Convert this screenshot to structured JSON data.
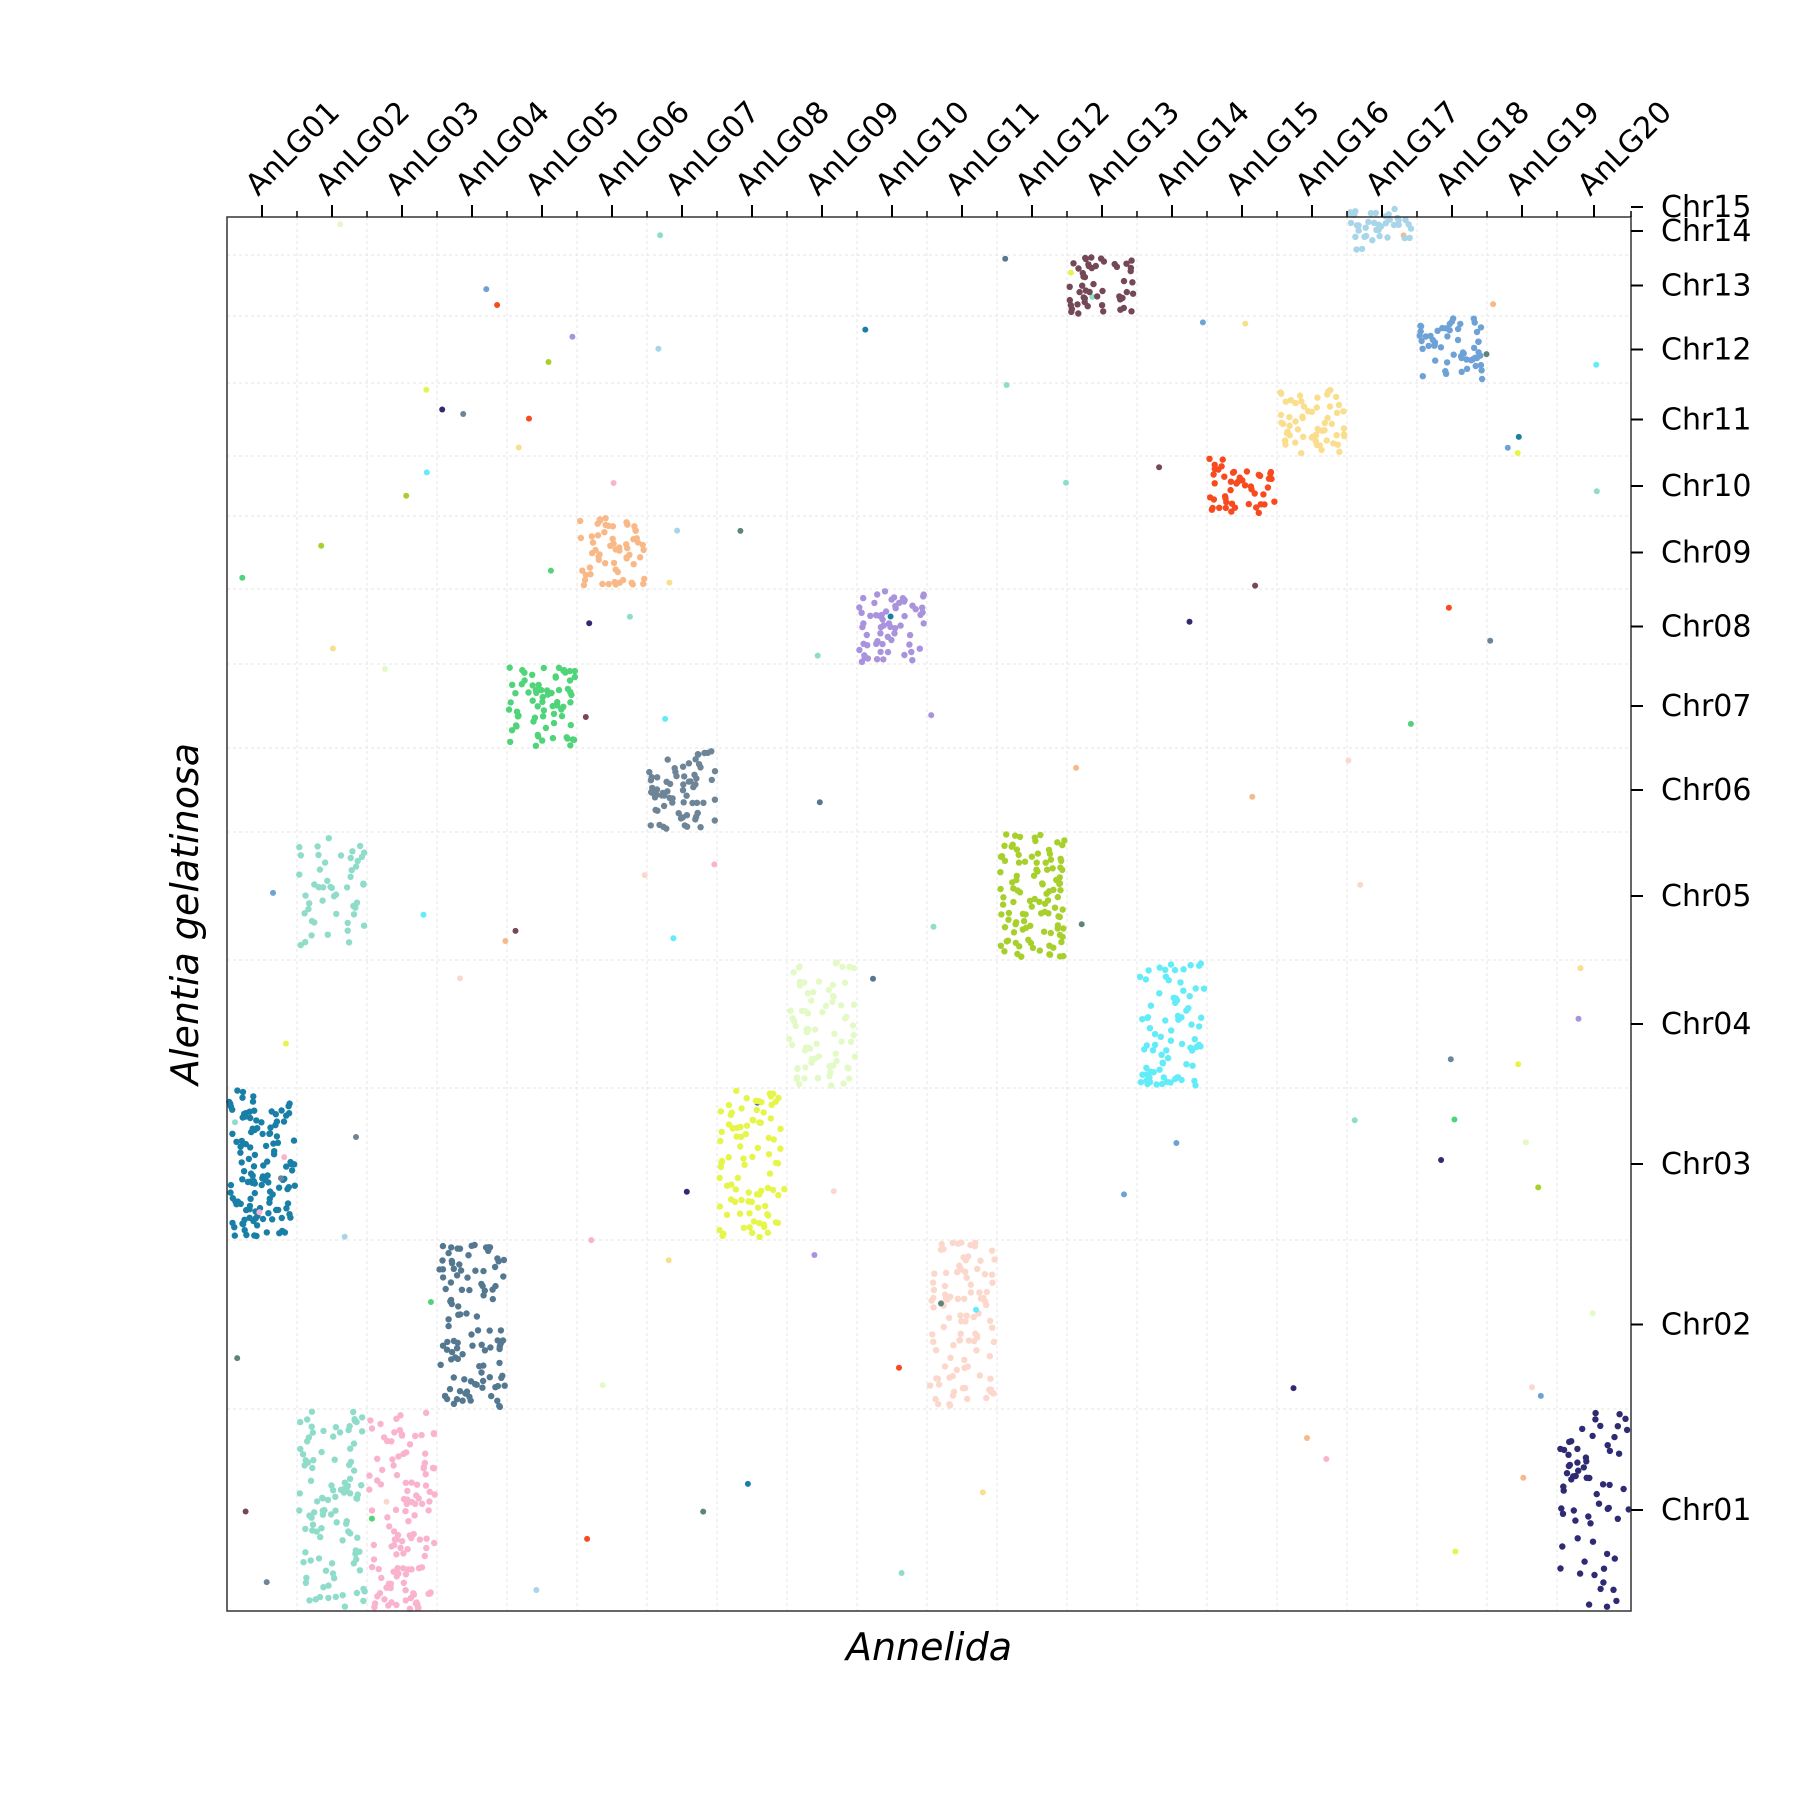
{
  "chart_data": {
    "type": "scatter",
    "xlabel": "Annelida",
    "ylabel": "Alentia gelatinosa",
    "x_categories": [
      "AnLG01",
      "AnLG02",
      "AnLG03",
      "AnLG04",
      "AnLG05",
      "AnLG06",
      "AnLG07",
      "AnLG08",
      "AnLG09",
      "AnLG10",
      "AnLG11",
      "AnLG12",
      "AnLG13",
      "AnLG14",
      "AnLG15",
      "AnLG16",
      "AnLG17",
      "AnLG18",
      "AnLG19",
      "AnLG20"
    ],
    "y_categories": [
      "Chr01",
      "Chr02",
      "Chr03",
      "Chr04",
      "Chr05",
      "Chr06",
      "Chr07",
      "Chr08",
      "Chr09",
      "Chr10",
      "Chr11",
      "Chr12",
      "Chr13",
      "Chr14",
      "Chr15"
    ],
    "x_axis_position": "top",
    "y_axis_position": "right",
    "grid": true,
    "blocks": [
      {
        "anlg": "AnLG01",
        "chr": "Chr03",
        "color": "#1a7fa6",
        "density": 1.0
      },
      {
        "anlg": "AnLG02",
        "chr": "Chr05",
        "color": "#8fdccb",
        "density": 0.45
      },
      {
        "anlg": "AnLG02",
        "chr": "Chr01",
        "color": "#8fdccb",
        "density": 0.6
      },
      {
        "anlg": "AnLG03",
        "chr": "Chr01",
        "color": "#f9b3cf",
        "density": 0.7
      },
      {
        "anlg": "AnLG04",
        "chr": "Chr02",
        "color": "#557891",
        "density": 0.75
      },
      {
        "anlg": "AnLG05",
        "chr": "Chr07",
        "color": "#4fd479",
        "density": 1.0
      },
      {
        "anlg": "AnLG06",
        "chr": "Chr09",
        "color": "#f9b887",
        "density": 1.0
      },
      {
        "anlg": "AnLG07",
        "chr": "Chr06",
        "color": "#6e8497",
        "density": 1.0
      },
      {
        "anlg": "AnLG08",
        "chr": "Chr03",
        "color": "#e6f54a",
        "density": 0.7
      },
      {
        "anlg": "AnLG09",
        "chr": "Chr04",
        "color": "#e3fac6",
        "density": 0.7
      },
      {
        "anlg": "AnLG10",
        "chr": "Chr08",
        "color": "#a993dc",
        "density": 1.0
      },
      {
        "anlg": "AnLG11",
        "chr": "Chr02",
        "color": "#fcd7cb",
        "density": 0.7
      },
      {
        "anlg": "AnLG12",
        "chr": "Chr05",
        "color": "#a8d02d",
        "density": 1.0
      },
      {
        "anlg": "AnLG13",
        "chr": "Chr13",
        "color": "#744857",
        "density": 1.0
      },
      {
        "anlg": "AnLG14",
        "chr": "Chr04",
        "color": "#62ecf7",
        "density": 0.75
      },
      {
        "anlg": "AnLG15",
        "chr": "Chr10",
        "color": "#f84a1f",
        "density": 1.0
      },
      {
        "anlg": "AnLG16",
        "chr": "Chr11",
        "color": "#f9de8e",
        "density": 1.0
      },
      {
        "anlg": "AnLG17",
        "chr": "Chr14",
        "color": "#a8d5e8",
        "density": 1.0
      },
      {
        "anlg": "AnLG18",
        "chr": "Chr12",
        "color": "#6ea2d6",
        "density": 1.0
      },
      {
        "anlg": "AnLG19",
        "chr": "Chr15",
        "color": "#5e857a",
        "density": 1.0
      },
      {
        "anlg": "AnLG20",
        "chr": "Chr01",
        "color": "#2f2b72",
        "density": 0.35
      }
    ]
  }
}
